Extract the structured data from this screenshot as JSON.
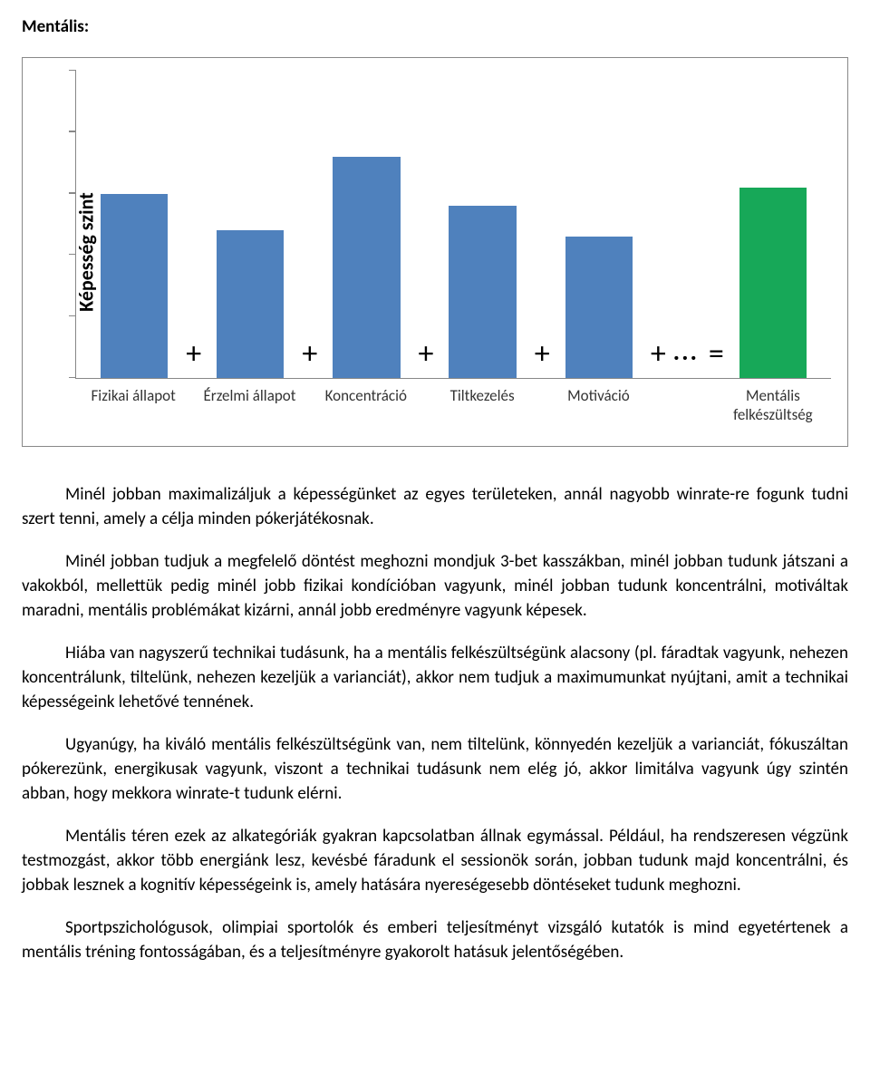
{
  "heading": "Mentális:",
  "chart": {
    "type": "bar",
    "y_axis_label": "Képesség szint",
    "ymax": 100,
    "y_ticks": [
      0,
      20,
      40,
      60,
      80,
      100
    ],
    "border_color": "#888888",
    "background_color": "#ffffff",
    "bars": [
      {
        "label": "Fizikai állapot",
        "value": 60,
        "color": "#4f81bd",
        "symbol_after": "+"
      },
      {
        "label": "Érzelmi állapot",
        "value": 48,
        "color": "#4f81bd",
        "symbol_after": "+"
      },
      {
        "label": "Koncentráció",
        "value": 72,
        "color": "#4f81bd",
        "symbol_after": "+"
      },
      {
        "label": "Tiltkezelés",
        "value": 56,
        "color": "#4f81bd",
        "symbol_after": "+"
      },
      {
        "label": "Motiváció",
        "value": 46,
        "color": "#4f81bd",
        "symbol_after": "+"
      },
      {
        "label": "",
        "value": 0,
        "color": "transparent",
        "symbol_center": "...",
        "gap": true,
        "symbol_after": "="
      },
      {
        "label": "Mentális felkészültség",
        "value": 62,
        "color": "#17a858"
      }
    ],
    "label_fontsize": 17,
    "yaxis_fontsize": 22,
    "symbol_fontsize": 34
  },
  "paragraphs": [
    "Minél jobban maximalizáljuk a képességünket az egyes területeken, annál nagyobb winrate-re fogunk tudni szert tenni, amely a célja minden pókerjátékosnak.",
    "Minél jobban tudjuk a megfelelő döntést meghozni mondjuk 3-bet kasszákban, minél jobban tudunk játszani a vakokból, mellettük pedig minél jobb fizikai kondícióban vagyunk, minél jobban tudunk koncentrálni, motiváltak maradni, mentális problémákat kizárni, annál jobb eredményre vagyunk képesek.",
    "Hiába van nagyszerű technikai tudásunk, ha a mentális felkészültségünk alacsony (pl. fáradtak vagyunk, nehezen koncentrálunk, tiltelünk, nehezen kezeljük a varianciát), akkor nem tudjuk a maximumunkat nyújtani, amit a technikai képességeink lehetővé tennének.",
    "Ugyanúgy, ha kiváló mentális felkészültségünk van, nem tiltelünk, könnyedén kezeljük a varianciát, fókuszáltan pókerezünk, energikusak vagyunk, viszont a technikai tudásunk nem elég jó, akkor limitálva vagyunk úgy szintén abban, hogy mekkora winrate-t tudunk elérni.",
    "Mentális téren ezek az alkategóriák gyakran kapcsolatban állnak egymással. Például, ha rendszeresen végzünk testmozgást, akkor több energiánk lesz, kevésbé fáradunk el sessionök során, jobban tudunk majd koncentrálni, és jobbak lesznek a kognitív képességeink is, amely hatására nyereségesebb döntéseket tudunk meghozni.",
    "Sportpszichológusok, olimpiai sportolók és emberi teljesítményt vizsgáló kutatók is mind egyetértenek a mentális tréning fontosságában, és a teljesítményre gyakorolt hatásuk jelentőségében."
  ]
}
